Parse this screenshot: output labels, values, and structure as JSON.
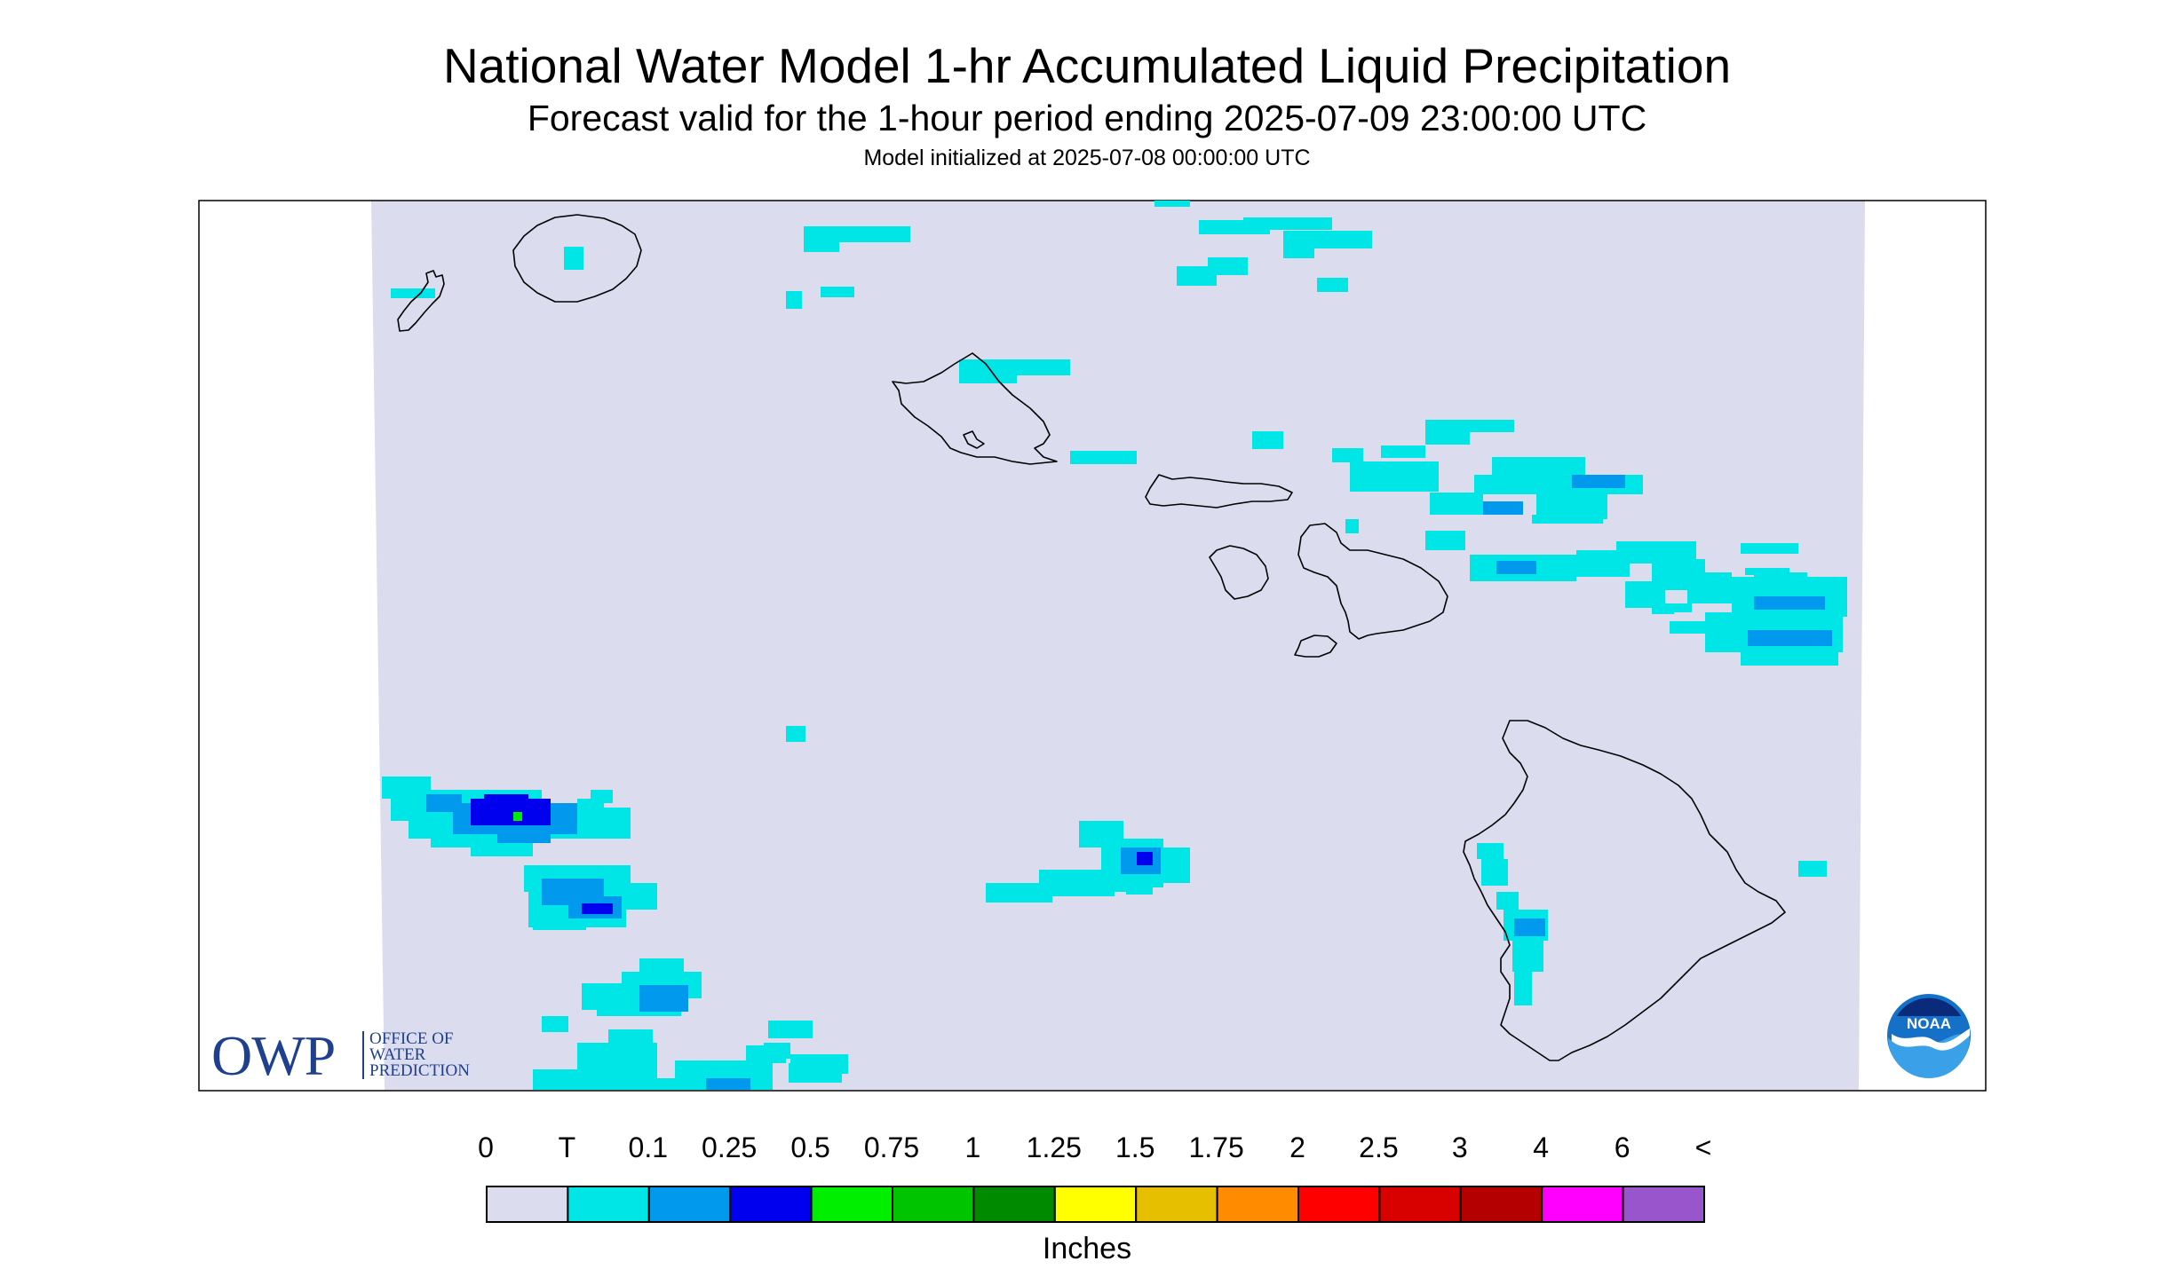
{
  "title": "National Water Model 1-hr Accumulated Liquid Precipitation",
  "subtitle": "Forecast valid for the 1-hour period ending 2025-07-09 23:00:00 UTC",
  "init_line": "Model initialized at 2025-07-08 00:00:00 UTC",
  "legend": {
    "labels": [
      "0",
      "T",
      "0.1",
      "0.25",
      "0.5",
      "0.75",
      "1",
      "1.25",
      "1.5",
      "1.75",
      "2",
      "2.5",
      "3",
      "4",
      "6",
      "<"
    ],
    "colors": [
      "#dcdcef",
      "#00e5e5",
      "#0099ee",
      "#0000ee",
      "#00ee00",
      "#00c400",
      "#008a00",
      "#ffff00",
      "#e5bf00",
      "#ff8c00",
      "#ff0000",
      "#d90000",
      "#b40000",
      "#ff00ff",
      "#9955cc"
    ],
    "units": "Inches"
  },
  "logos": {
    "owp_big": "OWP",
    "owp_small": [
      "OFFICE OF",
      "WATER",
      "PREDICTION"
    ],
    "noaa": "NOAA"
  },
  "map_colors": {
    "background": "#dcdcef",
    "trace": "#00e5e5",
    "light": "#0099ee",
    "moderate": "#0000ee",
    "heavy": "#00ee00",
    "coast": "#000000"
  }
}
